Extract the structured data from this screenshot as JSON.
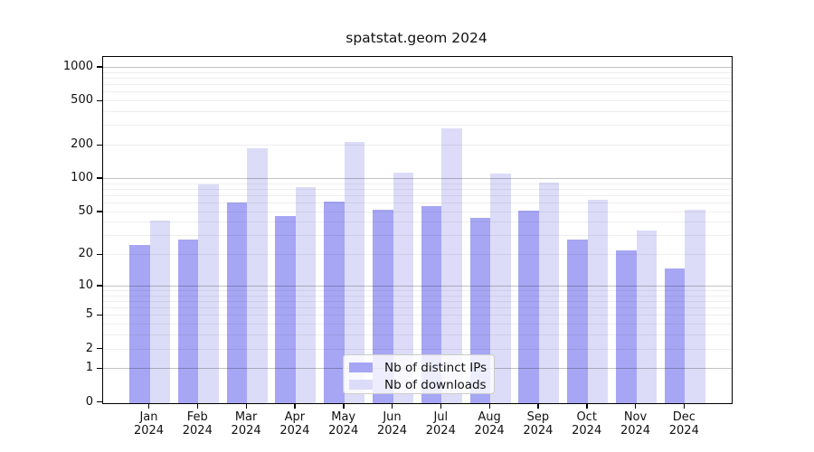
{
  "title": "spatstat.geom 2024",
  "chart_data": {
    "type": "bar",
    "title": "spatstat.geom 2024",
    "categories": [
      "Jan",
      "Feb",
      "Mar",
      "Apr",
      "May",
      "Jun",
      "Jul",
      "Aug",
      "Sep",
      "Oct",
      "Nov",
      "Dec"
    ],
    "year": "2024",
    "series": [
      {
        "name": "Nb of distinct IPs",
        "color": "#a6a6f4",
        "values": [
          25,
          28,
          61,
          46,
          62,
          53,
          57,
          44,
          52,
          28,
          22,
          15
        ]
      },
      {
        "name": "Nb of downloads",
        "color": "#dcdcf8",
        "values": [
          42,
          90,
          190,
          84,
          215,
          114,
          285,
          112,
          92,
          65,
          34,
          53
        ]
      }
    ],
    "xlabel": "",
    "ylabel": "",
    "y_scale": "log1p",
    "y_ticks": [
      0,
      1,
      2,
      5,
      10,
      20,
      50,
      100,
      200,
      500,
      1000
    ],
    "ylim": [
      0,
      1250
    ],
    "grid": "on",
    "grid_major_at": [
      1,
      10,
      100,
      1000
    ],
    "legend_position": "bottom-center"
  }
}
